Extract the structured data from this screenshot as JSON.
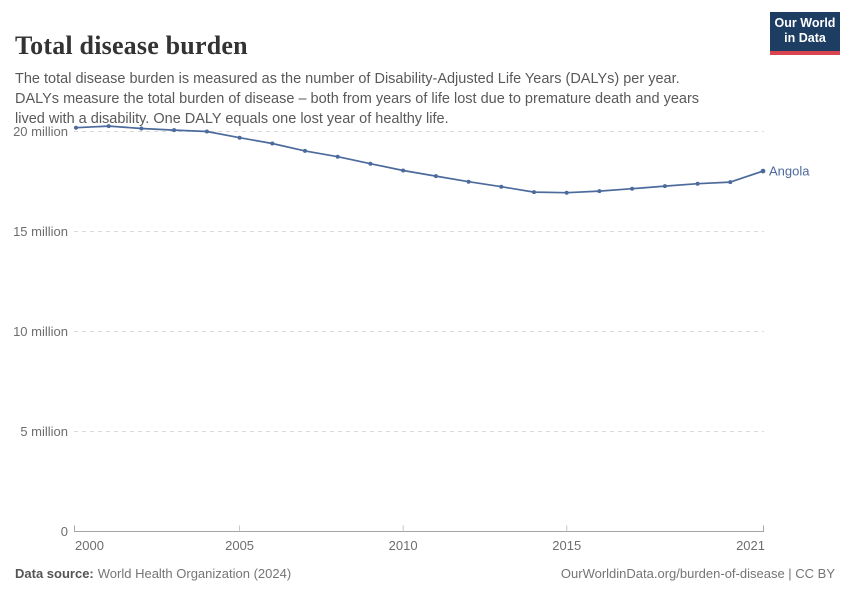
{
  "header": {
    "title": "Total disease burden",
    "subtitle": "The total disease burden is measured as the number of Disability-Adjusted Life Years (DALYs) per year. DALYs measure the total burden of disease – both from years of life lost due to premature death and years lived with a disability. One DALY equals one lost year of healthy life.",
    "logo": {
      "line1": "Our World",
      "line2": "in Data",
      "bg_color": "#1d3d63",
      "accent_color": "#d8444f",
      "text_color": "#ffffff"
    }
  },
  "chart_data": {
    "type": "line",
    "title": "Total disease burden",
    "unit": "DALYs per year",
    "x_label": "",
    "y_label": "",
    "x": [
      2000,
      2001,
      2002,
      2003,
      2004,
      2005,
      2006,
      2007,
      2008,
      2009,
      2010,
      2011,
      2012,
      2013,
      2014,
      2015,
      2016,
      2017,
      2018,
      2019,
      2020,
      2021
    ],
    "series": [
      {
        "name": "Angola",
        "color": "#4c6a9c",
        "values_unit": "million DALYs",
        "values": [
          20.19,
          20.27,
          20.15,
          20.07,
          20.0,
          19.69,
          19.4,
          19.03,
          18.74,
          18.39,
          18.05,
          17.77,
          17.49,
          17.24,
          16.97,
          16.94,
          17.02,
          17.14,
          17.27,
          17.39,
          17.47,
          18.02
        ]
      }
    ],
    "x_ticks": [
      2000,
      2005,
      2010,
      2015,
      2021
    ],
    "y_ticks": [
      {
        "value": 0,
        "label": "0"
      },
      {
        "value": 5,
        "label": "5 million"
      },
      {
        "value": 10,
        "label": "10 million"
      },
      {
        "value": 15,
        "label": "15 million"
      },
      {
        "value": 20,
        "label": "20 million"
      }
    ],
    "ylim": [
      0,
      21
    ],
    "grid": "horizontal-dashed",
    "legend": "end-of-line-label",
    "colors": {
      "axis": "#a5a5a5",
      "grid": "#d9d9d9",
      "tick_text": "#6e6e6e"
    }
  },
  "footer": {
    "source_label": "Data source:",
    "source_value": "World Health Organization (2024)",
    "link_text": "OurWorldinData.org/burden-of-disease | CC BY"
  }
}
